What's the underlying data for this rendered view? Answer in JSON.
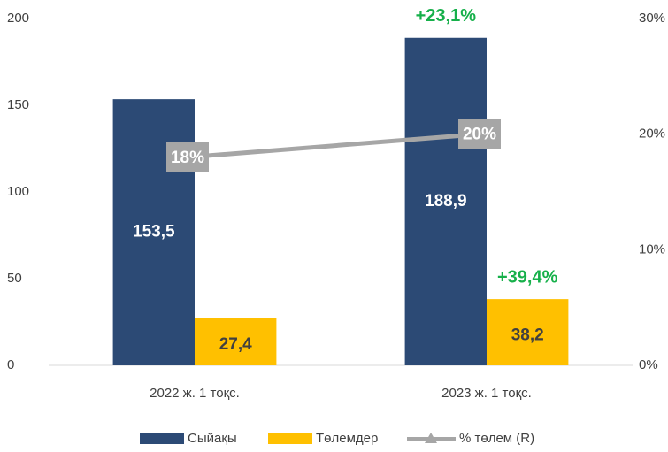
{
  "chart_data": {
    "type": "bar",
    "categories": [
      "2022 ж. 1 тоқс.",
      "2023 ж. 1 тоқс."
    ],
    "series": [
      {
        "name": "Сыйақы",
        "color": "#2c4a75",
        "values": [
          153.5,
          188.9
        ],
        "value_labels": [
          "153,5",
          "188,9"
        ]
      },
      {
        "name": "Төлемдер",
        "color": "#ffc000",
        "values": [
          27.4,
          38.2
        ],
        "value_labels": [
          "27,4",
          "38,2"
        ]
      },
      {
        "name": "% төлем (R)",
        "type": "line",
        "axis": "y2",
        "color": "#a6a6a6",
        "values": [
          18,
          20
        ],
        "value_labels": [
          "18%",
          "20%"
        ]
      }
    ],
    "ylim": [
      0,
      200
    ],
    "yticks": [
      0,
      50,
      100,
      150,
      200
    ],
    "y2lim": [
      0,
      30
    ],
    "y2ticks": [
      {
        "value": 0,
        "label": "0%"
      },
      {
        "value": 10,
        "label": "10%"
      },
      {
        "value": 20,
        "label": "20%"
      },
      {
        "value": 30,
        "label": "30%"
      }
    ],
    "annotations": [
      "+23,1%",
      "+39,4%"
    ],
    "legend": "bottom"
  }
}
